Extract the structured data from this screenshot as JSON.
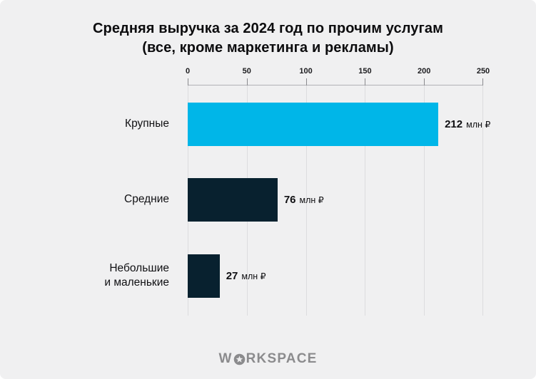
{
  "title": {
    "line1": "Средняя выручка за 2024 год по прочим услугам",
    "line2": "(все, кроме маркетинга и рекламы)"
  },
  "chart_data": {
    "type": "bar",
    "orientation": "horizontal",
    "title": "Средняя выручка за 2024 год по прочим услугам (все, кроме маркетинга и рекламы)",
    "categories": [
      "Крупные",
      "Средние",
      "Небольшие и маленькие"
    ],
    "values": [
      212,
      76,
      27
    ],
    "unit": "млн ₽",
    "value_labels": [
      "212 млн ₽",
      "76 млн ₽",
      "27 млн ₽"
    ],
    "xlim": [
      0,
      250
    ],
    "x_ticks": [
      0,
      50,
      100,
      150,
      200,
      250
    ],
    "x_tick_labels": [
      "0",
      "50",
      "100",
      "150",
      "200",
      "250"
    ],
    "grid": true,
    "legend": false,
    "axis_position": "top",
    "bar_colors": [
      "#00b6e8",
      "#08212f",
      "#08212f"
    ]
  },
  "rows": [
    {
      "label_lines": [
        "Крупные"
      ],
      "value_text": "212",
      "unit": "млн ₽"
    },
    {
      "label_lines": [
        "Средние"
      ],
      "value_text": "76",
      "unit": "млн ₽"
    },
    {
      "label_lines": [
        "Небольшие",
        "и маленькие"
      ],
      "value_text": "27",
      "unit": "млн ₽"
    }
  ],
  "colors": {
    "background": "#f0f0f1",
    "bar_accent": "#00b6e8",
    "bar_dark": "#08212f",
    "gridline": "#dcdcde",
    "axis_line": "#b2b2b5",
    "text": "#101013",
    "brand": "#8b8b8d"
  },
  "footer": {
    "brand_left": "W",
    "brand_right": "RKSPACE",
    "logo_icon": "star-circle-icon"
  }
}
